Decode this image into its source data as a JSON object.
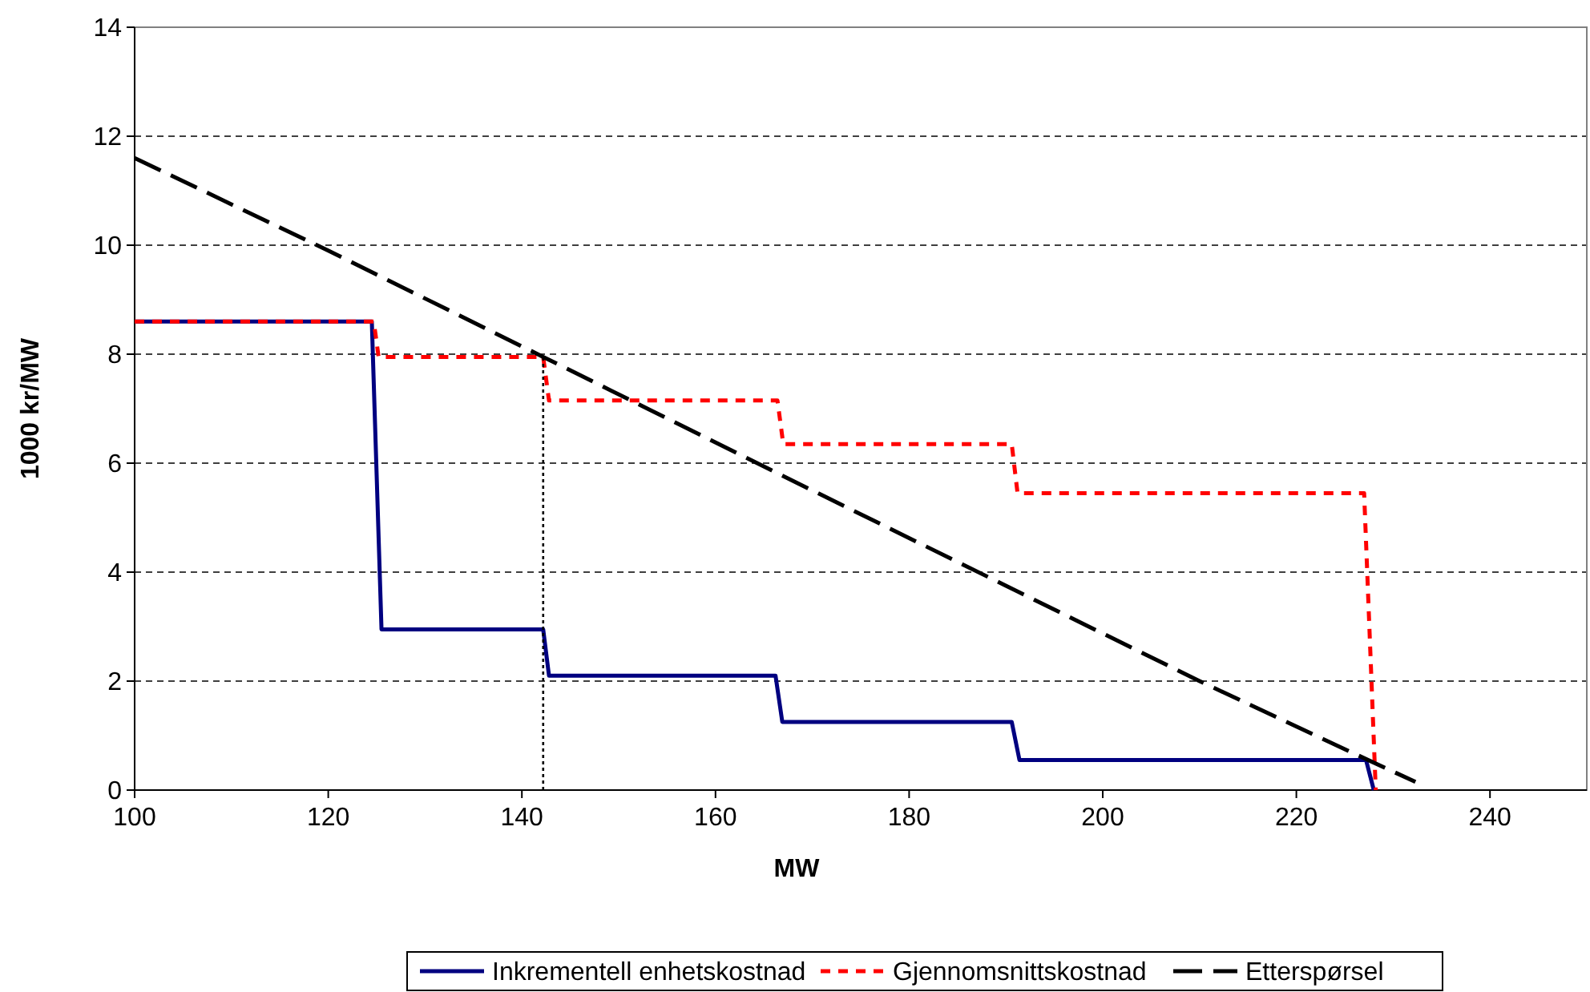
{
  "chart_data": {
    "type": "line",
    "xlabel": "MW",
    "ylabel": "1000 kr/MW",
    "xlim": [
      100,
      250
    ],
    "xticks": [
      100,
      120,
      140,
      160,
      180,
      200,
      220,
      240
    ],
    "ylim": [
      0,
      14
    ],
    "yticks": [
      0,
      2,
      4,
      6,
      8,
      10,
      12,
      14
    ],
    "grid": "y",
    "legend": "bottom",
    "marker": "none",
    "series": [
      {
        "name": "Inkrementell enhetskostnad",
        "color": "#000080",
        "line_style": "solid",
        "x": [
          100,
          124.5,
          125.5,
          142.2,
          142.8,
          166.2,
          166.9,
          190.6,
          191.4,
          227.2,
          228
        ],
        "values": [
          8.6,
          8.6,
          2.95,
          2.95,
          2.1,
          2.1,
          1.25,
          1.25,
          0.55,
          0.55,
          0
        ]
      },
      {
        "name": "Gjennomsnittskostnad",
        "color": "#ff0000",
        "line_style": "dashed",
        "x": [
          100,
          124.7,
          125.2,
          142.2,
          142.8,
          166.4,
          167,
          190.6,
          191.2,
          227,
          228.2
        ],
        "values": [
          8.6,
          8.6,
          7.95,
          7.95,
          7.15,
          7.15,
          6.35,
          6.35,
          5.45,
          5.45,
          0
        ]
      },
      {
        "name": "Etterspørsel",
        "color": "#000000",
        "line_style": "longdash",
        "x": [
          100,
          120,
          142.2,
          166,
          190,
          210,
          225,
          232.3
        ],
        "values": [
          11.6,
          9.9,
          7.95,
          5.85,
          3.75,
          2.0,
          0.75,
          0.15
        ]
      },
      {
        "color": "#000000",
        "line_style": "dotted",
        "x": [
          142.2,
          142.2
        ],
        "values": [
          0,
          7.95
        ]
      }
    ]
  }
}
